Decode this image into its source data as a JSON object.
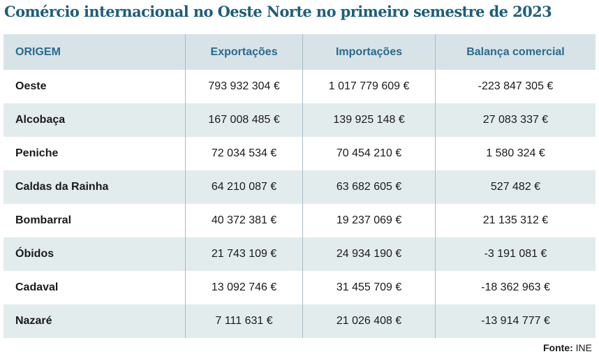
{
  "header": {
    "title": "Comércio internacional no Oeste Norte no primeiro semestre de 2023"
  },
  "table": {
    "columns": [
      "ORIGEM",
      "Exportações",
      "Importações",
      "Balança comercial"
    ],
    "rows": [
      [
        "Oeste",
        "793 932 304 €",
        "1 017 779 609 €",
        "-223 847 305 €"
      ],
      [
        "Alcobaça",
        "167 008 485 €",
        "139 925 148 €",
        "27 083 337 €"
      ],
      [
        "Peniche",
        "72 034 534 €",
        "70 454 210 €",
        "1 580 324 €"
      ],
      [
        "Caldas da Rainha",
        "64 210 087 €",
        "63 682 605 €",
        "527 482 €"
      ],
      [
        "Bombarral",
        "40 372 381 €",
        "19 237 069 €",
        "21 135 312 €"
      ],
      [
        "Óbidos",
        "21 743 109 €",
        "24 934 190 €",
        "-3 191 081 €"
      ],
      [
        "Cadaval",
        "13 092 746 €",
        "31 455 709 €",
        "-18 362 963 €"
      ],
      [
        "Nazaré",
        "7 111 631 €",
        "21 026 408 €",
        "-13 914 777 €"
      ]
    ]
  },
  "source": {
    "label": "Fonte:",
    "value": "INE"
  }
}
